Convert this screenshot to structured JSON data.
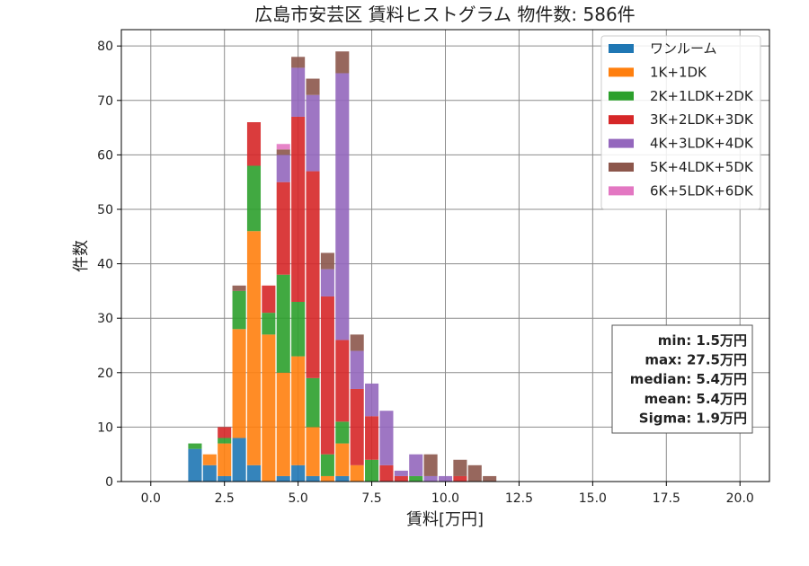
{
  "chart_data": {
    "type": "bar",
    "stacked": true,
    "title": "広島市安芸区 賃料ヒストグラム 物件数: 586件",
    "xlabel": "賃料[万円]",
    "ylabel": "件数",
    "xlim": [
      -1.0,
      21.0
    ],
    "ylim": [
      0,
      83
    ],
    "bin_width": 0.5,
    "grid": true,
    "legend_position": "top-right",
    "x_ticks": [
      0.0,
      2.5,
      5.0,
      7.5,
      10.0,
      12.5,
      15.0,
      17.5,
      20.0
    ],
    "x_tick_labels": [
      "0.0",
      "2.5",
      "5.0",
      "7.5",
      "10.0",
      "12.5",
      "15.0",
      "17.5",
      "20.0"
    ],
    "y_ticks": [
      0,
      10,
      20,
      30,
      40,
      50,
      60,
      70,
      80
    ],
    "y_tick_labels": [
      "0",
      "10",
      "20",
      "30",
      "40",
      "50",
      "60",
      "70",
      "80"
    ],
    "x": [
      1.5,
      2.0,
      2.5,
      3.0,
      3.5,
      4.0,
      4.5,
      5.0,
      5.5,
      6.0,
      6.5,
      7.0,
      7.5,
      8.0,
      8.5,
      9.0,
      9.5,
      10.0,
      10.5,
      11.0,
      11.5
    ],
    "series": [
      {
        "name": "ワンルーム",
        "color": "#1f77b4",
        "values": [
          6,
          3,
          1,
          8,
          3,
          0,
          1,
          3,
          1,
          0,
          1,
          0,
          0,
          0,
          0,
          0,
          0,
          0,
          0,
          0,
          0
        ]
      },
      {
        "name": "1K+1DK",
        "color": "#ff7f0e",
        "values": [
          0,
          2,
          6,
          20,
          43,
          27,
          19,
          20,
          9,
          1,
          6,
          3,
          0,
          0,
          0,
          0,
          0,
          0,
          0,
          0,
          0
        ]
      },
      {
        "name": "2K+1LDK+2DK",
        "color": "#2ca02c",
        "values": [
          1,
          0,
          1,
          7,
          12,
          4,
          18,
          10,
          9,
          4,
          4,
          0,
          4,
          0,
          0,
          1,
          0,
          0,
          0,
          0,
          0
        ]
      },
      {
        "name": "3K+2LDK+3DK",
        "color": "#d62728",
        "values": [
          0,
          0,
          2,
          0,
          8,
          5,
          17,
          34,
          38,
          29,
          15,
          14,
          8,
          3,
          1,
          0,
          0,
          0,
          1,
          0,
          0
        ]
      },
      {
        "name": "4K+3LDK+4DK",
        "color": "#9467bd",
        "values": [
          0,
          0,
          0,
          0,
          0,
          0,
          5,
          9,
          14,
          5,
          49,
          7,
          6,
          10,
          1,
          4,
          1,
          1,
          0,
          0,
          0
        ]
      },
      {
        "name": "5K+4LDK+5DK",
        "color": "#8c564b",
        "values": [
          0,
          0,
          0,
          1,
          0,
          0,
          1,
          2,
          3,
          3,
          4,
          3,
          0,
          0,
          0,
          0,
          4,
          0,
          3,
          3,
          1
        ]
      },
      {
        "name": "6K+5LDK+6DK",
        "color": "#e377c2",
        "values": [
          0,
          0,
          0,
          0,
          0,
          0,
          1,
          0,
          0,
          0,
          0,
          0,
          0,
          0,
          0,
          0,
          0,
          0,
          0,
          0,
          0
        ]
      }
    ],
    "stats_box": {
      "position": "middle-right",
      "lines": [
        "min: 1.5万円",
        "max: 27.5万円",
        "median: 5.4万円",
        "mean: 5.4万円",
        "Sigma: 1.9万円"
      ]
    }
  }
}
